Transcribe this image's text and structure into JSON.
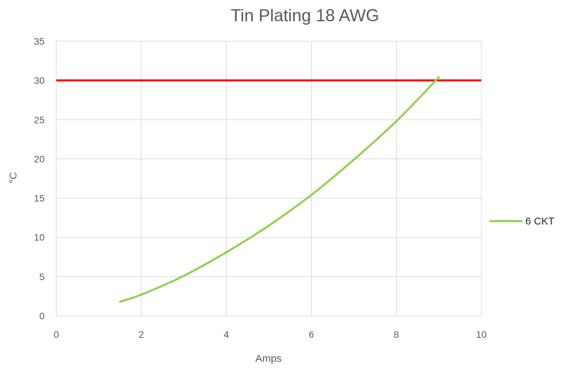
{
  "chart_data": {
    "type": "line",
    "title": "Tin Plating 18 AWG",
    "xlabel": "Amps",
    "ylabel": "°C",
    "xlim": [
      0,
      10
    ],
    "ylim": [
      0,
      35
    ],
    "x_ticks": [
      "0",
      "2",
      "4",
      "6",
      "8",
      "10"
    ],
    "y_ticks": [
      "0",
      "5",
      "10",
      "15",
      "20",
      "25",
      "30",
      "35"
    ],
    "grid": true,
    "legend_position": "right",
    "series": [
      {
        "name": "6 CKT",
        "color": "#92D050",
        "x": [
          1.5,
          2,
          3,
          4,
          5,
          6,
          7,
          8,
          9
        ],
        "values": [
          1.8,
          2.7,
          5.1,
          8.1,
          11.5,
          15.4,
          19.9,
          24.8,
          30.4
        ]
      }
    ],
    "reference_line": {
      "y": 30,
      "color": "#FF0000"
    }
  }
}
